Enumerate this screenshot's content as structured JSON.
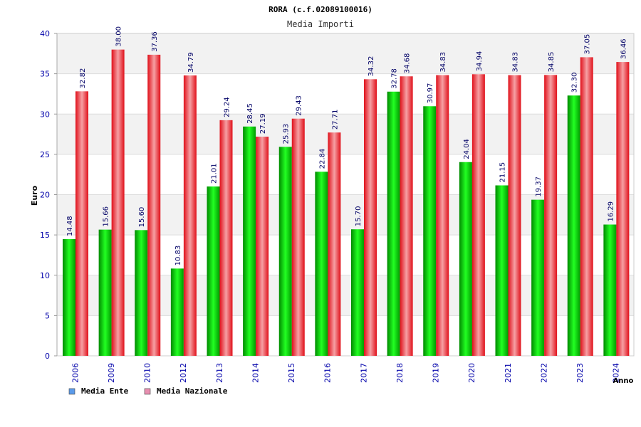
{
  "chart_data": {
    "type": "bar",
    "title": "RORA (c.f.02089100016)",
    "subtitle": "Media Importi",
    "xlabel": "Anno",
    "ylabel": "Euro",
    "ylim": [
      0,
      40
    ],
    "yticks": [
      0,
      5,
      10,
      15,
      20,
      25,
      30,
      35,
      40
    ],
    "grid": true,
    "legend_position": "bottom-left",
    "categories": [
      "2006",
      "2009",
      "2010",
      "2012",
      "2013",
      "2014",
      "2015",
      "2016",
      "2017",
      "2018",
      "2019",
      "2020",
      "2021",
      "2022",
      "2023",
      "2024"
    ],
    "series": [
      {
        "name": "Media Ente",
        "color": "#00b000",
        "legend_color": "#5b9bea",
        "values": [
          14.48,
          15.66,
          15.6,
          10.83,
          21.01,
          28.45,
          25.93,
          22.84,
          15.7,
          32.78,
          30.97,
          24.04,
          21.15,
          19.37,
          32.3,
          16.29
        ],
        "labels": [
          "14.48",
          "15.66",
          "15.60",
          "10.83",
          "21.01",
          "28.45",
          "25.93",
          "22.84",
          "15.70",
          "32.78",
          "30.97",
          "24.04",
          "21.15",
          "19.37",
          "32.30",
          "16.29"
        ]
      },
      {
        "name": "Media Nazionale",
        "color": "#ee1c25",
        "legend_color": "#e88fb0",
        "values": [
          32.82,
          38.0,
          37.36,
          34.79,
          29.24,
          27.19,
          29.43,
          27.71,
          34.32,
          34.68,
          34.83,
          34.94,
          34.83,
          34.85,
          37.05,
          36.46
        ],
        "labels": [
          "32.82",
          "38.00",
          "37.36",
          "34.79",
          "29.24",
          "27.19",
          "29.43",
          "27.71",
          "34.32",
          "34.68",
          "34.83",
          "34.94",
          "34.83",
          "34.85",
          "37.05",
          "36.46"
        ]
      }
    ]
  }
}
